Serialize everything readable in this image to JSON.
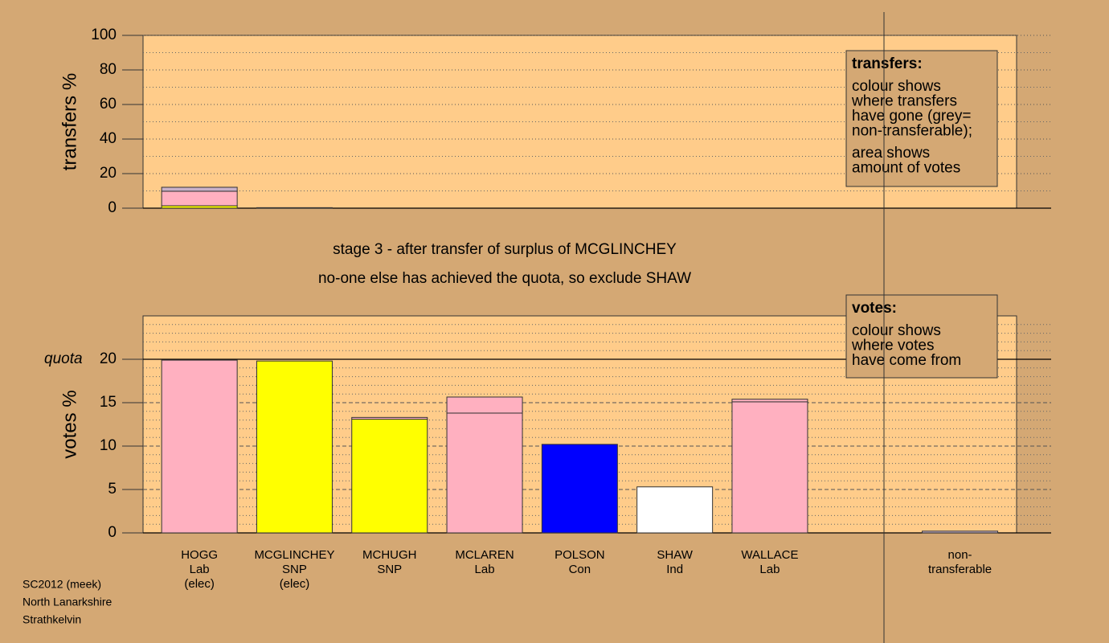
{
  "chart_data": [
    {
      "type": "stacked-bar",
      "ylabel": "transfers %",
      "ylim": [
        0,
        100
      ],
      "yticks": [
        0,
        20,
        40,
        60,
        80,
        100
      ],
      "minor_yticks": [
        10,
        30,
        50,
        70,
        90
      ],
      "grid": true,
      "legend_box": {
        "title": "transfers:",
        "lines": [
          [
            "colour shows",
            "where transfers",
            "have gone (grey=",
            "non-transferable);"
          ],
          [
            "area shows",
            "amount of votes"
          ]
        ]
      },
      "segments": [
        [
          {
            "value": 1.4,
            "color": "#ffff00"
          },
          {
            "value": 8.4,
            "color": "#ffb0c0"
          },
          {
            "value": 2.3,
            "color": "#c8b0c8"
          }
        ],
        [
          {
            "value": 0.3,
            "color": "#ffff00"
          }
        ],
        [],
        [],
        [],
        [],
        [],
        [],
        []
      ]
    },
    {
      "type": "stacked-bar",
      "ylabel": "votes %",
      "ylim": [
        0,
        25
      ],
      "yticks": [
        0,
        5,
        10,
        15,
        20
      ],
      "minor_yticks": [
        1,
        2,
        3,
        4,
        6,
        7,
        8,
        9,
        11,
        12,
        13,
        14,
        16,
        17,
        18,
        19,
        21,
        22,
        23,
        24
      ],
      "grid": true,
      "quota": 20,
      "quota_label": "quota",
      "legend_box": {
        "title": "votes:",
        "lines": [
          [
            "colour shows",
            "where votes",
            "have come from"
          ]
        ]
      },
      "categories": [
        [
          "HOGG",
          "Lab",
          "(elec)"
        ],
        [
          "MCGLINCHEY",
          "SNP",
          "(elec)"
        ],
        [
          "MCHUGH",
          "SNP"
        ],
        [
          "MCLAREN",
          "Lab"
        ],
        [
          "POLSON",
          "Con"
        ],
        [
          "SHAW",
          "Ind"
        ],
        [
          "WALLACE",
          "Lab"
        ],
        null,
        [
          "non-",
          "transferable"
        ]
      ],
      "segments": [
        [
          {
            "value": 19.9,
            "color": "#ffb0c0"
          }
        ],
        [
          {
            "value": 19.8,
            "color": "#ffff00"
          }
        ],
        [
          {
            "value": 13.1,
            "color": "#ffff00"
          },
          {
            "value": 0.2,
            "color": "#ffb0c0"
          }
        ],
        [
          {
            "value": 13.8,
            "color": "#ffb0c0"
          },
          {
            "value": 1.85,
            "color": "#ffb0c0"
          }
        ],
        [
          {
            "value": 10.2,
            "color": "#0000ff"
          }
        ],
        [
          {
            "value": 5.3,
            "color": "#ffffff"
          }
        ],
        [
          {
            "value": 15.1,
            "color": "#ffb0c0"
          },
          {
            "value": 0.3,
            "color": "#ffb0c0"
          }
        ],
        [],
        [
          {
            "value": 0.2,
            "color": "#c8b0c8"
          }
        ]
      ]
    }
  ],
  "notes": [
    "stage 3 - after transfer of surplus of MCGLINCHEY",
    "no-one else has achieved the quota, so exclude SHAW"
  ],
  "footer": [
    "SC2012 (meek)",
    "North Lanarkshire",
    "Strathkelvin"
  ]
}
